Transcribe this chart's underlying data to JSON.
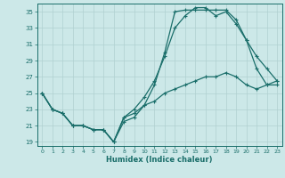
{
  "xlabel": "Humidex (Indice chaleur)",
  "bg_color": "#cce8e8",
  "line_color": "#1a6e6a",
  "grid_color": "#b0d0d0",
  "xlim": [
    -0.5,
    23.5
  ],
  "ylim": [
    18.5,
    36
  ],
  "xticks": [
    0,
    1,
    2,
    3,
    4,
    5,
    6,
    7,
    8,
    9,
    10,
    11,
    12,
    13,
    14,
    15,
    16,
    17,
    18,
    19,
    20,
    21,
    22,
    23
  ],
  "yticks": [
    19,
    21,
    23,
    25,
    27,
    29,
    31,
    33,
    35
  ],
  "line1_x": [
    0,
    1,
    2,
    3,
    4,
    5,
    6,
    7,
    8,
    9,
    10,
    11,
    12,
    13,
    14,
    15,
    16,
    17,
    18,
    19,
    20,
    21,
    22,
    23
  ],
  "line1_y": [
    25,
    23,
    22.5,
    21,
    21,
    20.5,
    20.5,
    19,
    21.5,
    22,
    23.5,
    26,
    30,
    35,
    35.2,
    35.2,
    35.2,
    35.2,
    35.2,
    34,
    31.5,
    28,
    26,
    26
  ],
  "line2_x": [
    0,
    1,
    2,
    3,
    4,
    5,
    6,
    7,
    8,
    9,
    10,
    11,
    12,
    13,
    14,
    15,
    16,
    17,
    18,
    19,
    20,
    21,
    22,
    23
  ],
  "line2_y": [
    25,
    23,
    22.5,
    21,
    21,
    20.5,
    20.5,
    19,
    22,
    23,
    24.5,
    26.5,
    29.5,
    33,
    34.5,
    35.5,
    35.5,
    34.5,
    35,
    33.5,
    31.5,
    29.5,
    28,
    26.5
  ],
  "line3_x": [
    0,
    1,
    2,
    3,
    4,
    5,
    6,
    7,
    8,
    9,
    10,
    11,
    12,
    13,
    14,
    15,
    16,
    17,
    18,
    19,
    20,
    21,
    22,
    23
  ],
  "line3_y": [
    25,
    23,
    22.5,
    21,
    21,
    20.5,
    20.5,
    19,
    22,
    22.5,
    23.5,
    24,
    25,
    25.5,
    26,
    26.5,
    27,
    27,
    27.5,
    27,
    26,
    25.5,
    26,
    26.5
  ]
}
